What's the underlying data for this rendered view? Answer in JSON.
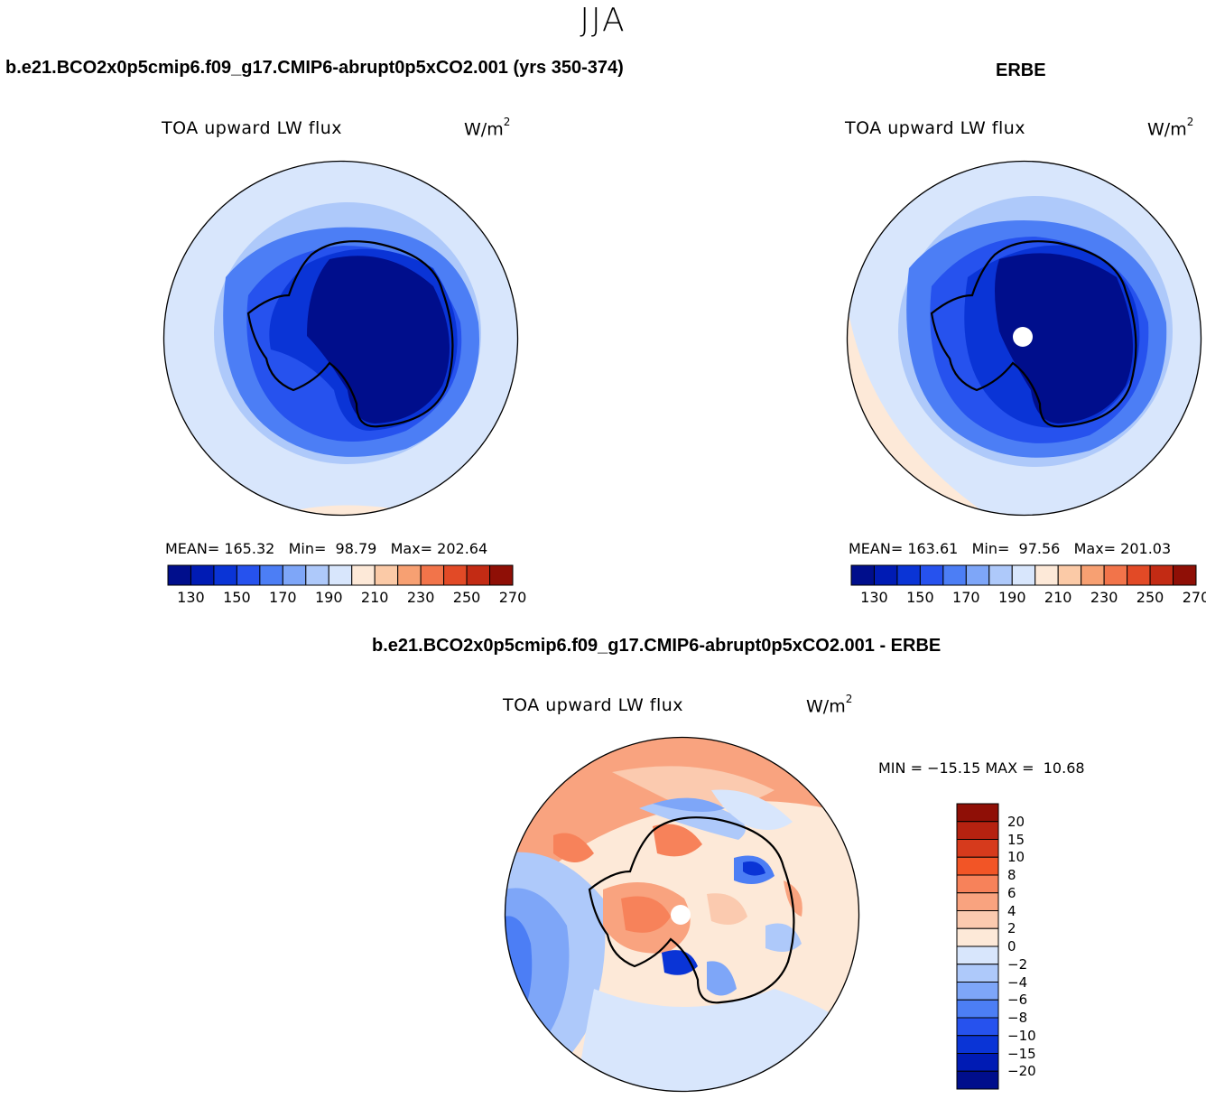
{
  "figure": {
    "season": "JJA"
  },
  "panels": {
    "model": {
      "title": "b.e21.BCO2x0p5cmip6.f09_g17.CMIP6-abrupt0p5xCO2.001 (yrs 350-374)",
      "variable_label": "TOA upward LW flux",
      "units": "W/m",
      "units_exp": "2",
      "stats": "MEAN= 165.32   Min=  98.79   Max= 202.64"
    },
    "obs": {
      "title": "ERBE",
      "variable_label": "TOA upward LW flux",
      "units": "W/m",
      "units_exp": "2",
      "stats": "MEAN= 163.61   Min=  97.56   Max= 201.03"
    },
    "diff": {
      "title": "b.e21.BCO2x0p5cmip6.f09_g17.CMIP6-abrupt0p5xCO2.001 - ERBE",
      "variable_label": "TOA upward LW flux",
      "units": "W/m",
      "units_exp": "2",
      "stats": "MIN = −15.15 MAX =  10.68"
    }
  },
  "colorbars": {
    "abs": {
      "colors": [
        "#000e8c",
        "#001bb4",
        "#0a34d6",
        "#2652ee",
        "#4c7ef5",
        "#7ea6f8",
        "#aec9fa",
        "#d8e6fc",
        "#fde9d8",
        "#fbcaa7",
        "#f7a072",
        "#f2744a",
        "#e24a26",
        "#c32b14",
        "#8f0f06"
      ],
      "tick_labels": [
        "130",
        "150",
        "170",
        "190",
        "210",
        "230",
        "250",
        "270"
      ]
    },
    "diff": {
      "colors": [
        "#8f0f06",
        "#b52210",
        "#d63a1c",
        "#f25526",
        "#f7825a",
        "#f9a37f",
        "#fbcaaf",
        "#fde9d8",
        "#d8e6fc",
        "#aec9fa",
        "#7ea6f8",
        "#4c7ef5",
        "#2652ee",
        "#0a34d6",
        "#001bb4",
        "#000e8c"
      ],
      "tick_labels": [
        "20",
        "15",
        "10",
        "8",
        "6",
        "4",
        "2",
        "0",
        "−2",
        "−4",
        "−6",
        "−8",
        "−10",
        "−15",
        "−20"
      ]
    }
  },
  "map_colors": {
    "land_outline": "#000000",
    "pole_hole": "#ffffff"
  }
}
